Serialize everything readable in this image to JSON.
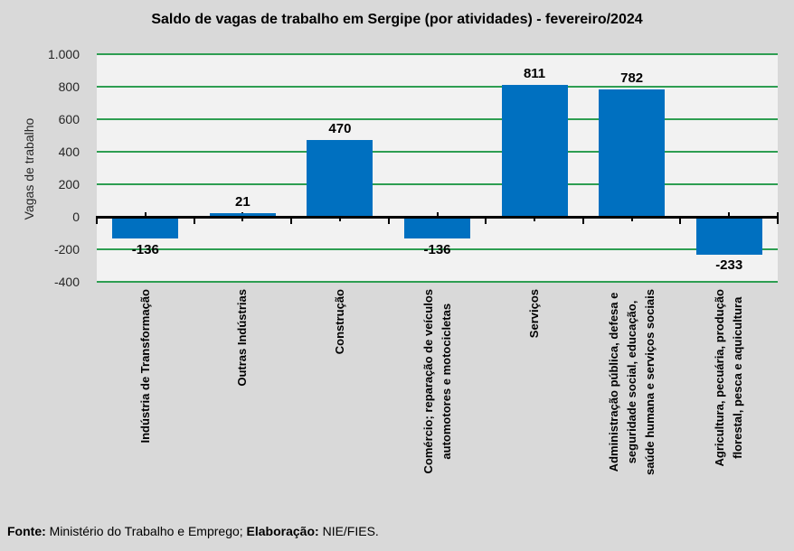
{
  "chart_data": {
    "type": "bar",
    "title": "Saldo de vagas de trabalho em Sergipe (por atividades) - fevereiro/2024",
    "ylabel": "Vagas de trabalho",
    "xlabel": "",
    "categories": [
      "Indústria de Transformação",
      "Outras Indústrias",
      "Construção",
      "Comércio; reparação de veículos\nautomotores e motocicletas",
      "Serviços",
      "Administração pública, defesa e\nseguridade social, educação,\nsaúde humana e serviços sociais",
      "Agricultura, pecuária, produção\nflorestal, pesca e aquicultura"
    ],
    "values": [
      -136,
      21,
      470,
      -136,
      811,
      782,
      -233
    ],
    "data_labels": [
      "-136",
      "21",
      "470",
      "-136",
      "811",
      "782",
      "-233"
    ],
    "ylim": [
      -400,
      1000
    ],
    "yticks": [
      1000,
      800,
      600,
      400,
      200,
      0,
      -200,
      -400
    ],
    "ytick_labels": [
      "1.000",
      "800",
      "600",
      "400",
      "200",
      "0",
      "-200",
      "-400"
    ],
    "grid": true,
    "legend_position": "none",
    "colors": {
      "bar": "#0070C0",
      "gridline": "#2E9E52",
      "plot_bg": "#F2F2F2",
      "background": "#D9D9D9",
      "axis": "#000000"
    }
  },
  "footer": {
    "source_label": "Fonte:",
    "source_text": " Ministério do Trabalho e Emprego; ",
    "elaboration_label": "Elaboração:",
    "elaboration_text": " NIE/FIES."
  }
}
